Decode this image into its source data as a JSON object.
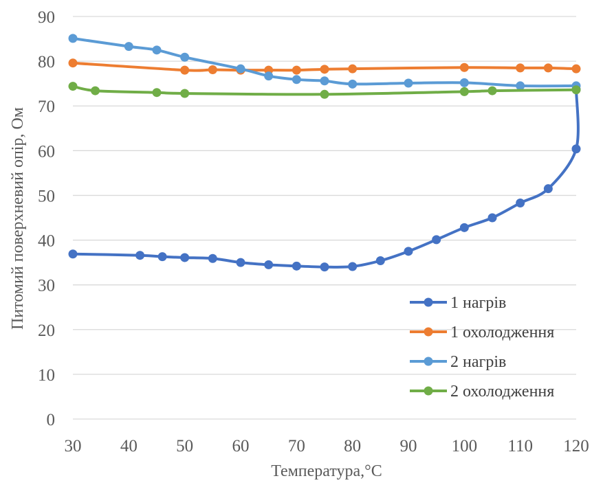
{
  "chart_data": {
    "type": "line",
    "title": "",
    "xlabel": "Температура,°C",
    "ylabel": "Питомий поверхневий опір, Ом",
    "xlim": [
      30,
      120
    ],
    "ylim": [
      0,
      90
    ],
    "xticks": [
      30,
      40,
      50,
      60,
      70,
      80,
      90,
      100,
      110,
      120
    ],
    "yticks": [
      0,
      10,
      20,
      30,
      40,
      50,
      60,
      70,
      80,
      90
    ],
    "grid": "horizontal",
    "legend_position": "bottom-right",
    "series": [
      {
        "name": "1 нагрів",
        "color": "#4472C4",
        "points": [
          [
            30,
            36.9
          ],
          [
            42,
            36.6
          ],
          [
            46,
            36.3
          ],
          [
            50,
            36.1
          ],
          [
            55,
            35.9
          ],
          [
            60,
            35.0
          ],
          [
            65,
            34.5
          ],
          [
            70,
            34.2
          ],
          [
            75,
            34.0
          ],
          [
            80,
            34.1
          ],
          [
            85,
            35.4
          ],
          [
            90,
            37.5
          ],
          [
            95,
            40.1
          ],
          [
            100,
            42.8
          ],
          [
            105,
            45.0
          ],
          [
            110,
            48.3
          ],
          [
            115,
            51.5
          ],
          [
            120,
            60.4
          ],
          [
            120,
            73.7
          ]
        ]
      },
      {
        "name": "1 охолодження",
        "color": "#ED7D31",
        "points": [
          [
            30,
            79.6
          ],
          [
            50,
            78.0
          ],
          [
            55,
            78.1
          ],
          [
            60,
            78.0
          ],
          [
            65,
            78.0
          ],
          [
            70,
            78.0
          ],
          [
            75,
            78.2
          ],
          [
            80,
            78.3
          ],
          [
            100,
            78.6
          ],
          [
            110,
            78.5
          ],
          [
            115,
            78.5
          ],
          [
            120,
            78.3
          ]
        ]
      },
      {
        "name": "2 нагрів",
        "color": "#5B9BD5",
        "points": [
          [
            30,
            85.1
          ],
          [
            40,
            83.3
          ],
          [
            45,
            82.5
          ],
          [
            50,
            80.9
          ],
          [
            60,
            78.3
          ],
          [
            65,
            76.7
          ],
          [
            70,
            75.9
          ],
          [
            75,
            75.6
          ],
          [
            80,
            74.9
          ],
          [
            90,
            75.1
          ],
          [
            100,
            75.2
          ],
          [
            110,
            74.5
          ],
          [
            120,
            74.5
          ]
        ]
      },
      {
        "name": "2 охолодження",
        "color": "#70AD47",
        "points": [
          [
            30,
            74.4
          ],
          [
            34,
            73.4
          ],
          [
            45,
            73.0
          ],
          [
            50,
            72.8
          ],
          [
            75,
            72.6
          ],
          [
            100,
            73.2
          ],
          [
            105,
            73.4
          ],
          [
            120,
            73.6
          ]
        ]
      }
    ]
  }
}
